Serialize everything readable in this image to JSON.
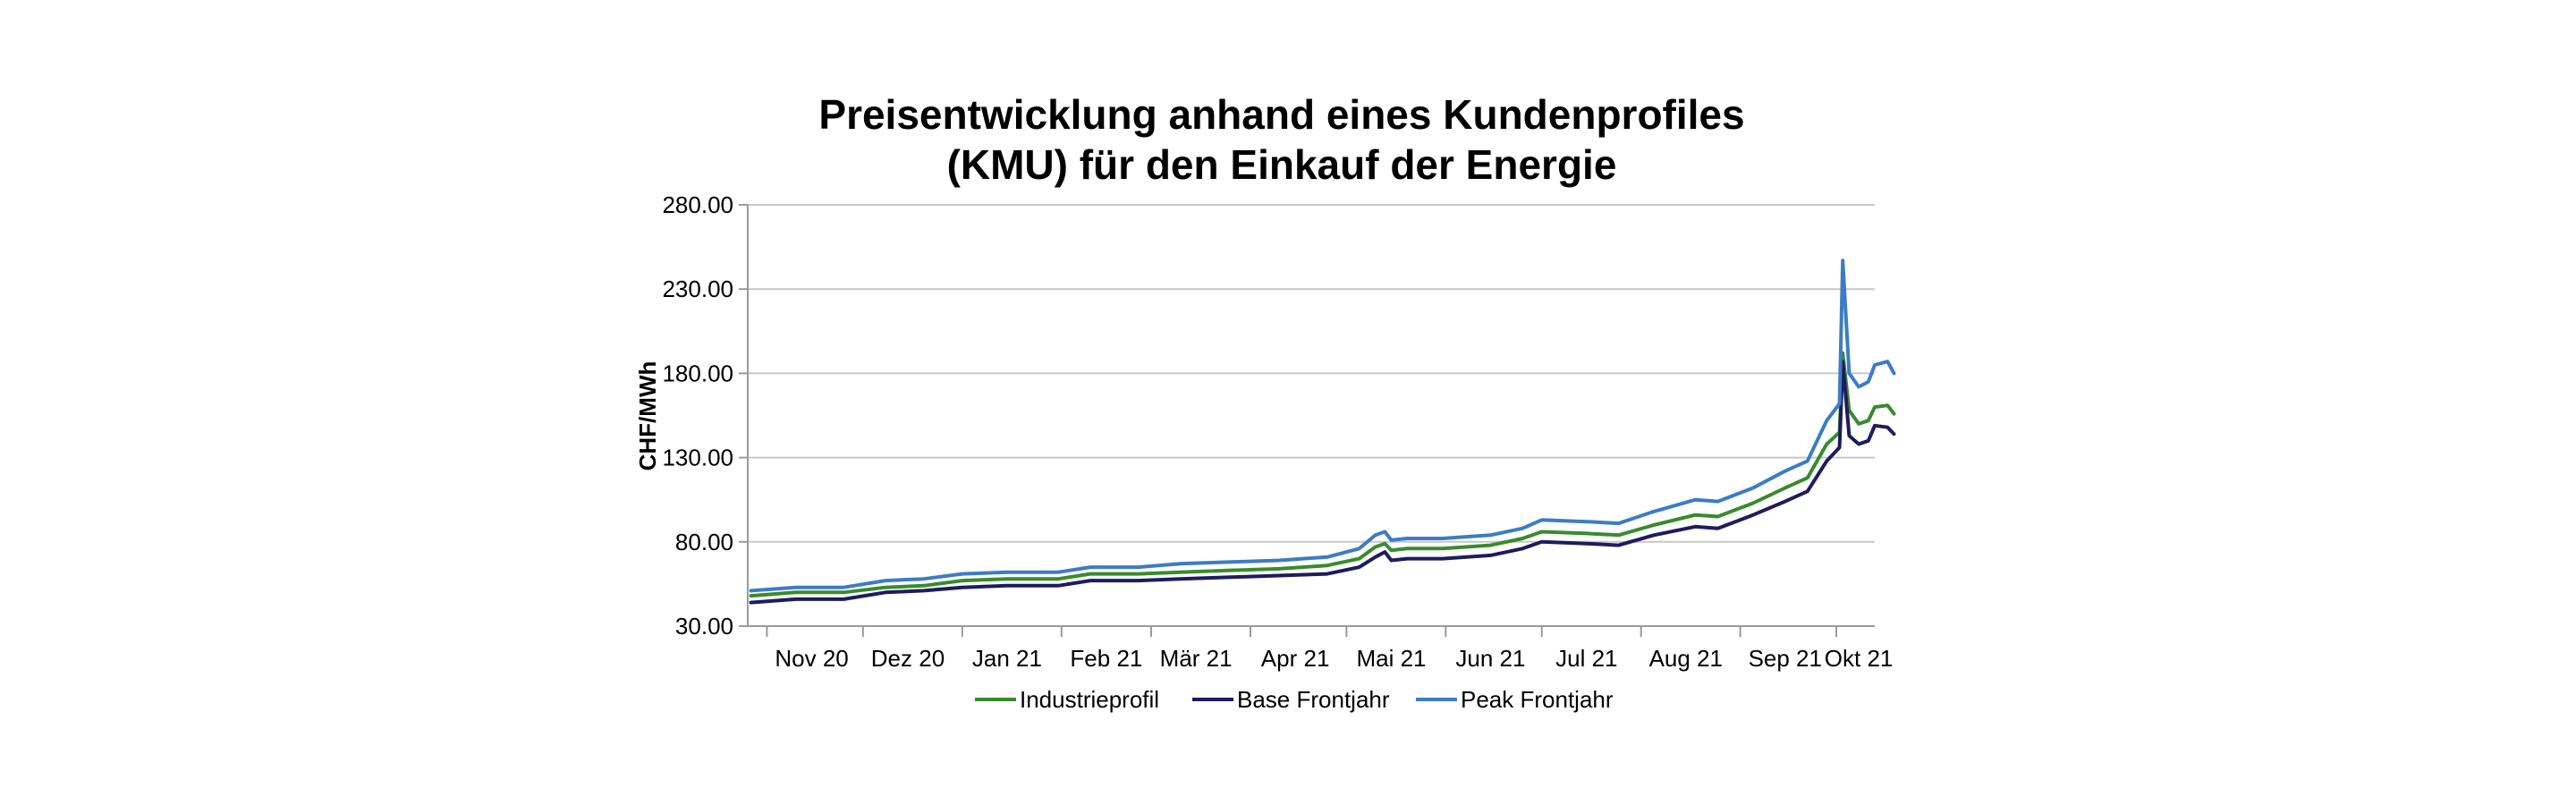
{
  "chart_data": {
    "type": "line",
    "title_lines": [
      "Preisentwicklung anhand eines Kundenprofiles",
      "(KMU) für den Einkauf der Energie"
    ],
    "xlabel": "",
    "ylabel": "CHF/MWh",
    "ylim": [
      30,
      280
    ],
    "yticks": [
      30,
      80,
      130,
      180,
      230,
      280
    ],
    "ytick_labels": [
      "30.00",
      "80.00",
      "130.00",
      "180.00",
      "230.00",
      "280.00"
    ],
    "grid": true,
    "legend_position": "bottom",
    "xlim": [
      "2020-10-26",
      "2021-10-13"
    ],
    "x_ticks": [
      {
        "label": "Nov 20",
        "date": "2020-11-15"
      },
      {
        "label": "Dez 20",
        "date": "2020-12-15"
      },
      {
        "label": "Jan 21",
        "date": "2021-01-15"
      },
      {
        "label": "Feb 21",
        "date": "2021-02-15"
      },
      {
        "label": "Mär 21",
        "date": "2021-03-15"
      },
      {
        "label": "Apr 21",
        "date": "2021-04-15"
      },
      {
        "label": "Mai 21",
        "date": "2021-05-15"
      },
      {
        "label": "Jun 21",
        "date": "2021-06-15"
      },
      {
        "label": "Jul 21",
        "date": "2021-07-15"
      },
      {
        "label": "Aug 21",
        "date": "2021-08-15"
      },
      {
        "label": "Sep 21",
        "date": "2021-09-15"
      },
      {
        "label": "Okt 21",
        "date": "2021-10-08"
      }
    ],
    "x_boundaries": [
      "2020-11-01",
      "2020-12-01",
      "2021-01-01",
      "2021-02-01",
      "2021-03-01",
      "2021-04-01",
      "2021-05-01",
      "2021-06-01",
      "2021-07-01",
      "2021-08-01",
      "2021-09-01",
      "2021-10-01"
    ],
    "series": [
      {
        "name": "Industrieprofil",
        "color": "#3a8a2e",
        "points": [
          [
            "2020-10-27",
            48
          ],
          [
            "2020-11-10",
            50
          ],
          [
            "2020-11-25",
            50
          ],
          [
            "2020-12-08",
            53
          ],
          [
            "2020-12-20",
            54
          ],
          [
            "2021-01-01",
            57
          ],
          [
            "2021-01-15",
            58
          ],
          [
            "2021-01-31",
            58
          ],
          [
            "2021-02-10",
            61
          ],
          [
            "2021-02-25",
            61
          ],
          [
            "2021-03-10",
            62
          ],
          [
            "2021-03-25",
            63
          ],
          [
            "2021-04-10",
            64
          ],
          [
            "2021-04-25",
            66
          ],
          [
            "2021-05-05",
            70
          ],
          [
            "2021-05-10",
            77
          ],
          [
            "2021-05-13",
            79
          ],
          [
            "2021-05-15",
            75
          ],
          [
            "2021-05-20",
            76
          ],
          [
            "2021-05-31",
            76
          ],
          [
            "2021-06-15",
            78
          ],
          [
            "2021-06-25",
            82
          ],
          [
            "2021-07-01",
            86
          ],
          [
            "2021-07-15",
            85
          ],
          [
            "2021-07-25",
            84
          ],
          [
            "2021-08-05",
            90
          ],
          [
            "2021-08-18",
            96
          ],
          [
            "2021-08-25",
            95
          ],
          [
            "2021-09-05",
            103
          ],
          [
            "2021-09-15",
            112
          ],
          [
            "2021-09-22",
            118
          ],
          [
            "2021-09-28",
            138
          ],
          [
            "2021-10-02",
            145
          ],
          [
            "2021-10-03",
            192
          ],
          [
            "2021-10-05",
            158
          ],
          [
            "2021-10-08",
            150
          ],
          [
            "2021-10-11",
            152
          ],
          [
            "2021-10-13",
            160
          ],
          [
            "2021-10-17",
            161
          ],
          [
            "2021-10-19",
            156
          ]
        ]
      },
      {
        "name": "Base Frontjahr",
        "color": "#1c1c5e",
        "points": [
          [
            "2020-10-27",
            44
          ],
          [
            "2020-11-10",
            46
          ],
          [
            "2020-11-25",
            46
          ],
          [
            "2020-12-08",
            50
          ],
          [
            "2020-12-20",
            51
          ],
          [
            "2021-01-01",
            53
          ],
          [
            "2021-01-15",
            54
          ],
          [
            "2021-01-31",
            54
          ],
          [
            "2021-02-10",
            57
          ],
          [
            "2021-02-25",
            57
          ],
          [
            "2021-03-10",
            58
          ],
          [
            "2021-03-25",
            59
          ],
          [
            "2021-04-10",
            60
          ],
          [
            "2021-04-25",
            61
          ],
          [
            "2021-05-05",
            65
          ],
          [
            "2021-05-10",
            71
          ],
          [
            "2021-05-13",
            74
          ],
          [
            "2021-05-15",
            69
          ],
          [
            "2021-05-20",
            70
          ],
          [
            "2021-05-31",
            70
          ],
          [
            "2021-06-15",
            72
          ],
          [
            "2021-06-25",
            76
          ],
          [
            "2021-07-01",
            80
          ],
          [
            "2021-07-15",
            79
          ],
          [
            "2021-07-25",
            78
          ],
          [
            "2021-08-05",
            84
          ],
          [
            "2021-08-18",
            89
          ],
          [
            "2021-08-25",
            88
          ],
          [
            "2021-09-05",
            96
          ],
          [
            "2021-09-15",
            104
          ],
          [
            "2021-09-22",
            110
          ],
          [
            "2021-09-28",
            128
          ],
          [
            "2021-10-02",
            136
          ],
          [
            "2021-10-03",
            187
          ],
          [
            "2021-10-05",
            143
          ],
          [
            "2021-10-08",
            138
          ],
          [
            "2021-10-11",
            140
          ],
          [
            "2021-10-13",
            149
          ],
          [
            "2021-10-17",
            148
          ],
          [
            "2021-10-19",
            144
          ]
        ]
      },
      {
        "name": "Peak Frontjahr",
        "color": "#3c7cc6",
        "points": [
          [
            "2020-10-27",
            51
          ],
          [
            "2020-11-10",
            53
          ],
          [
            "2020-11-25",
            53
          ],
          [
            "2020-12-08",
            57
          ],
          [
            "2020-12-20",
            58
          ],
          [
            "2021-01-01",
            61
          ],
          [
            "2021-01-15",
            62
          ],
          [
            "2021-01-31",
            62
          ],
          [
            "2021-02-10",
            65
          ],
          [
            "2021-02-25",
            65
          ],
          [
            "2021-03-10",
            67
          ],
          [
            "2021-03-25",
            68
          ],
          [
            "2021-04-10",
            69
          ],
          [
            "2021-04-25",
            71
          ],
          [
            "2021-05-05",
            76
          ],
          [
            "2021-05-10",
            84
          ],
          [
            "2021-05-13",
            86
          ],
          [
            "2021-05-15",
            81
          ],
          [
            "2021-05-20",
            82
          ],
          [
            "2021-05-31",
            82
          ],
          [
            "2021-06-15",
            84
          ],
          [
            "2021-06-25",
            88
          ],
          [
            "2021-07-01",
            93
          ],
          [
            "2021-07-15",
            92
          ],
          [
            "2021-07-25",
            91
          ],
          [
            "2021-08-05",
            98
          ],
          [
            "2021-08-18",
            105
          ],
          [
            "2021-08-25",
            104
          ],
          [
            "2021-09-05",
            112
          ],
          [
            "2021-09-15",
            122
          ],
          [
            "2021-09-22",
            128
          ],
          [
            "2021-09-28",
            152
          ],
          [
            "2021-10-02",
            162
          ],
          [
            "2021-10-03",
            247
          ],
          [
            "2021-10-05",
            180
          ],
          [
            "2021-10-08",
            172
          ],
          [
            "2021-10-11",
            175
          ],
          [
            "2021-10-13",
            185
          ],
          [
            "2021-10-17",
            187
          ],
          [
            "2021-10-19",
            180
          ]
        ]
      }
    ]
  }
}
